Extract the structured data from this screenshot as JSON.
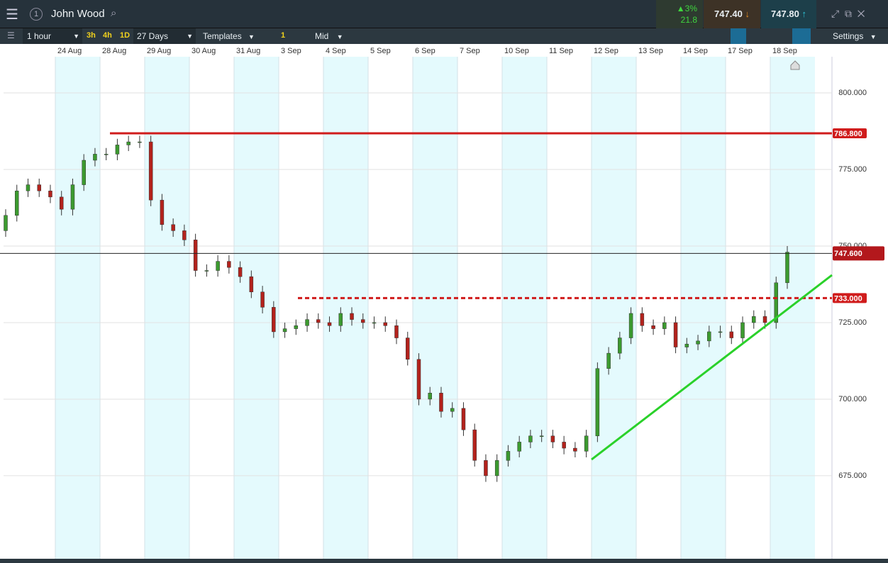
{
  "ui": {
    "instrument": "John Wood",
    "change_pct": "3%",
    "change": "21.8",
    "sell": "747.40",
    "buy": "747.80",
    "interval": "1 hour",
    "quick_intervals": [
      "3h",
      "4h",
      "1D"
    ],
    "range": "27 Days",
    "templates": "Templates",
    "count": "1",
    "price_mode": "Mid",
    "settings": "Settings"
  },
  "chart_data": {
    "type": "candlestick",
    "categories": [
      "24 Aug",
      "28 Aug",
      "29 Aug",
      "30 Aug",
      "31 Aug",
      "3 Sep",
      "4 Sep",
      "5 Sep",
      "6 Sep",
      "7 Sep",
      "10 Sep",
      "11 Sep",
      "12 Sep",
      "13 Sep",
      "14 Sep",
      "17 Sep",
      "18 Sep"
    ],
    "open": [
      755,
      760,
      768,
      770,
      768,
      766,
      762,
      770,
      778,
      780,
      780,
      783,
      784,
      784,
      765,
      757,
      755,
      752,
      742,
      742,
      745,
      743,
      740,
      735,
      730,
      722,
      723,
      724,
      726,
      725,
      724,
      728,
      726,
      725,
      725,
      724,
      720,
      713,
      700,
      702,
      696,
      697,
      690,
      680,
      675,
      680,
      683,
      686,
      688,
      688,
      686,
      684,
      683,
      688,
      710,
      715,
      720,
      728,
      724,
      723,
      725,
      717,
      718,
      719,
      722,
      722,
      720,
      725,
      727,
      725,
      738
    ],
    "high": [
      762,
      770,
      772,
      772,
      770,
      768,
      772,
      780,
      782,
      782,
      785,
      786,
      786,
      786,
      767,
      759,
      757,
      754,
      744,
      747,
      747,
      745,
      742,
      737,
      732,
      725,
      726,
      728,
      728,
      727,
      730,
      730,
      728,
      727,
      727,
      726,
      722,
      715,
      704,
      704,
      699,
      699,
      692,
      682,
      682,
      685,
      688,
      690,
      690,
      690,
      688,
      686,
      690,
      712,
      717,
      722,
      730,
      730,
      726,
      727,
      727,
      720,
      721,
      724,
      724,
      724,
      727,
      729,
      729,
      740,
      750
    ],
    "low": [
      753,
      758,
      766,
      766,
      764,
      760,
      760,
      768,
      776,
      778,
      778,
      781,
      782,
      763,
      755,
      753,
      750,
      740,
      740,
      740,
      741,
      738,
      733,
      728,
      720,
      720,
      721,
      722,
      723,
      722,
      722,
      724,
      723,
      723,
      722,
      718,
      711,
      698,
      698,
      694,
      694,
      688,
      678,
      673,
      673,
      678,
      681,
      684,
      686,
      684,
      682,
      681,
      681,
      686,
      708,
      713,
      718,
      722,
      721,
      721,
      715,
      715,
      716,
      717,
      720,
      718,
      718,
      723,
      723,
      723,
      736
    ],
    "close": [
      760,
      768,
      770,
      768,
      766,
      762,
      770,
      778,
      780,
      780,
      783,
      784,
      784,
      765,
      757,
      755,
      752,
      742,
      742,
      745,
      743,
      740,
      735,
      730,
      722,
      723,
      724,
      726,
      725,
      724,
      728,
      726,
      725,
      725,
      724,
      720,
      713,
      700,
      702,
      696,
      697,
      690,
      680,
      675,
      680,
      683,
      686,
      688,
      688,
      686,
      684,
      683,
      688,
      710,
      715,
      720,
      728,
      724,
      723,
      725,
      717,
      718,
      719,
      722,
      722,
      720,
      725,
      727,
      725,
      738,
      748
    ],
    "up_color": "#3c9a2f",
    "down_color": "#b3221c",
    "ylim": [
      647.9,
      811.8
    ],
    "yticks": [
      {
        "value": 675,
        "label": "675.000"
      },
      {
        "value": 700,
        "label": "700.000"
      },
      {
        "value": 725,
        "label": "725.000"
      },
      {
        "value": 750,
        "label": "750.000"
      },
      {
        "value": 775,
        "label": "775.000"
      },
      {
        "value": 800,
        "label": "800.000"
      }
    ],
    "grid": true,
    "levels": [
      {
        "value": 786.8,
        "label": "786.800",
        "color": "#d01c1c",
        "style": "solid"
      },
      {
        "value": 733,
        "label": "733.000",
        "color": "#d01c1c",
        "style": "dashed"
      },
      {
        "value": 747.6,
        "label": "747.600",
        "color": "#222222",
        "style": "current"
      }
    ],
    "trendline": {
      "from": 680.3,
      "to": 740.5,
      "color": "#2ad12a"
    }
  }
}
